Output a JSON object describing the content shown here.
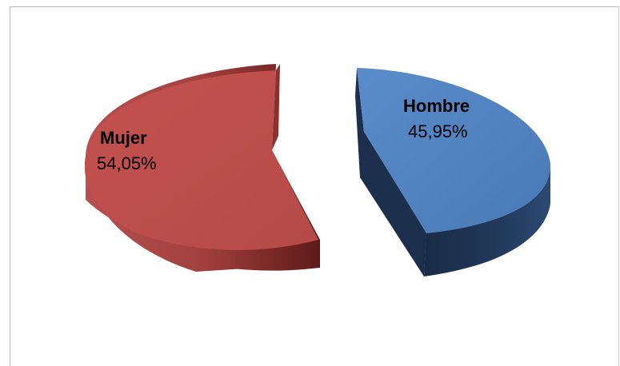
{
  "chart_data": {
    "type": "pie",
    "style": "3d-exploded",
    "slices": [
      {
        "label": "Mujer",
        "value": 54.05,
        "value_text": "54,05%",
        "color": "#c0504d",
        "side_color": "#8e2f2c"
      },
      {
        "label": "Hombre",
        "value": 45.95,
        "value_text": "45,95%",
        "color": "#4f81bd",
        "side_color": "#1f3555"
      }
    ]
  }
}
